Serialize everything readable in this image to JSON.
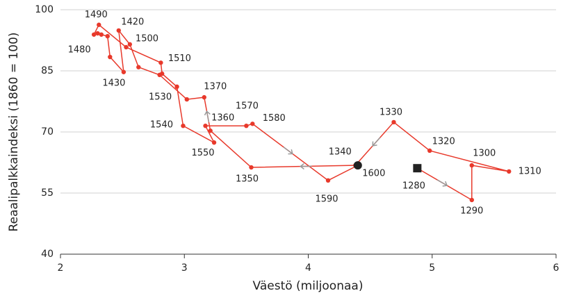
{
  "chart_data": {
    "type": "connected-scatter",
    "x_label": "Väestö (miljoonaa)",
    "y_label": "Reaalipalkkaindeksi (1860 = 100)",
    "xlim": [
      2,
      6
    ],
    "xticks": [
      2,
      3,
      4,
      5,
      6
    ],
    "ylim": [
      40,
      100
    ],
    "yticks": [
      40,
      55,
      70,
      85,
      100
    ],
    "grid": true,
    "color": "#e8392b",
    "x": [
      4.88,
      5.32,
      5.32,
      5.62,
      4.98,
      4.69,
      4.38,
      3.54,
      3.21,
      3.16,
      3.02,
      2.8,
      2.63,
      2.56,
      2.47,
      2.51,
      2.4,
      2.38,
      2.33,
      2.3,
      2.27,
      2.31,
      2.53,
      2.81,
      2.82,
      2.94,
      2.99,
      3.24,
      3.17,
      3.5,
      3.55,
      4.16,
      4.4
    ],
    "values": [
      61.1,
      53.3,
      61.8,
      60.3,
      65.4,
      72.4,
      61.8,
      61.3,
      70.3,
      78.5,
      78.0,
      84.0,
      85.9,
      91.5,
      94.9,
      84.7,
      88.4,
      93.5,
      93.9,
      94.2,
      93.9,
      96.3,
      90.8,
      87.0,
      84.3,
      81.1,
      71.5,
      67.4,
      71.5,
      71.5,
      72.0,
      58.1,
      61.8
    ],
    "labels": [
      "1280",
      "1290",
      "1300",
      "1310",
      "1320",
      "1330",
      "1340",
      "1350",
      "1360",
      "1370",
      null,
      null,
      null,
      null,
      "1420",
      "1430",
      null,
      null,
      null,
      null,
      "1480",
      "1490",
      "1500",
      "1510",
      null,
      "1530",
      "1540",
      "1550",
      null,
      "1570",
      "1580",
      "1590",
      "1600"
    ]
  }
}
